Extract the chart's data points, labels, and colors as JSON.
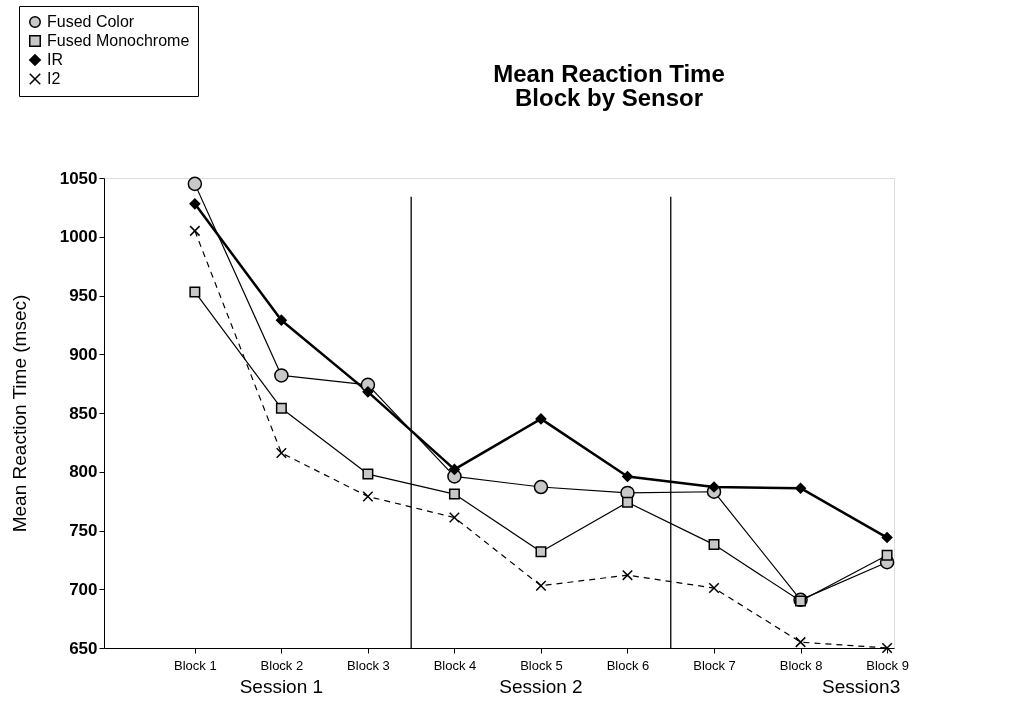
{
  "chart_data": {
    "type": "line",
    "title": "Mean Reaction Time",
    "subtitle": "Block by Sensor",
    "ylabel": "Mean Reaction Time (msec)",
    "categories": [
      "Block 1",
      "Block 2",
      "Block 3",
      "Block 4",
      "Block 5",
      "Block 6",
      "Block 7",
      "Block 8",
      "Block 9"
    ],
    "ylim": [
      650,
      1050
    ],
    "yticks": [
      650,
      700,
      750,
      800,
      850,
      900,
      950,
      1000,
      1050
    ],
    "series": [
      {
        "name": "Fused Color",
        "color": "#000000",
        "marker": "circle",
        "line_style": "solid",
        "values": [
          1045,
          882,
          874,
          796,
          787,
          782,
          783,
          691,
          723
        ]
      },
      {
        "name": "Fused Monochrome",
        "color": "#000000",
        "marker": "square",
        "line_style": "solid",
        "values": [
          953,
          854,
          798,
          781,
          732,
          774,
          738,
          690,
          729
        ]
      },
      {
        "name": "IR",
        "color": "#000000",
        "marker": "diamond",
        "line_style": "solid",
        "values": [
          1028,
          929,
          868,
          802,
          845,
          796,
          787,
          786,
          744
        ]
      },
      {
        "name": "I2",
        "color": "#000000",
        "marker": "cross",
        "line_style": "dashed",
        "values": [
          1005,
          816,
          779,
          761,
          703,
          712,
          701,
          655,
          650
        ]
      }
    ],
    "annotations": [
      "Session 1",
      "Session 2",
      "Session3"
    ],
    "legend": "top left",
    "grid": false
  }
}
